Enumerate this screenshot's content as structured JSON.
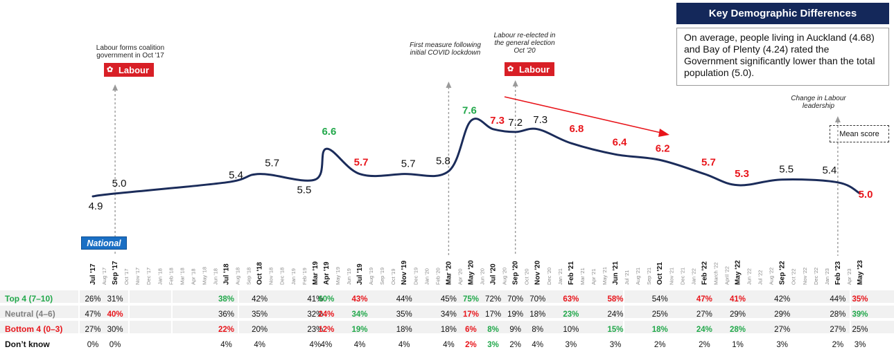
{
  "key_box": {
    "title": "Key Demographic Differences",
    "text": "On average, people living in Auckland (4.68) and Bay of Plenty (4.24) rated the Government significantly lower than the total population (5.0)."
  },
  "legend": {
    "label": "Mean score"
  },
  "annotations": {
    "coalition": "Labour forms coalition government in Oct '17",
    "covid": "First measure following initial COVID lockdown",
    "reelected": "Labour re-elected in the general election Oct '20",
    "leadership": "Change in Labour leadership"
  },
  "badges": {
    "labour1": "Labour",
    "labour2": "Labour",
    "national": "National"
  },
  "chart_data": {
    "type": "line",
    "title": "Mean score",
    "colors": {
      "line": "#1b2c5a",
      "red": "#e8151b",
      "green": "#22a84b",
      "gray": "#7f7f7f"
    },
    "months": [
      "Jul '17",
      "Aug '17",
      "Sep '17",
      "Oct '17",
      "Nov '17",
      "Dec '17",
      "Jan '18",
      "Feb '18",
      "Mar '18",
      "Apr '18",
      "May '18",
      "Jun '18",
      "Jul '18",
      "Aug '18",
      "Sep '18",
      "Oct '18",
      "Nov '18",
      "Dec '18",
      "Jan '19",
      "Feb '19",
      "Mar '19",
      "Apr '19",
      "May '19",
      "Jun '19",
      "Jul '19",
      "Aug '19",
      "Sep '19",
      "Oct '19",
      "Nov '19",
      "Dec '19",
      "Jan '20",
      "Feb '20",
      "Mar '20",
      "Apr '20",
      "May '20",
      "Jun '20",
      "Jul '20",
      "Aug '20",
      "Sep '20",
      "Oct '20",
      "Nov '20",
      "Dec '20",
      "Jan '21",
      "Feb '21",
      "Mar '21",
      "Apr '21",
      "May '21",
      "Jun '21",
      "Jul '21",
      "Aug '21",
      "Sep '21",
      "Oct '21",
      "Nov '21",
      "Dec '21",
      "Jan '22",
      "Feb '22",
      "March '22",
      "April '22",
      "May '22",
      "Jun '22",
      "Jul '22",
      "Aug '22",
      "Sep '22",
      "Oct '22",
      "Nov '22",
      "Dec '22",
      "Jan '23",
      "Feb '23",
      "Apr '23",
      "May '23"
    ],
    "bold_months": [
      "Jul '17",
      "Sep '17",
      "Jul '18",
      "Oct '18",
      "Mar '19",
      "Apr '19",
      "Jul '19",
      "Nov '19",
      "Mar '20",
      "May '20",
      "Jul '20",
      "Sep '20",
      "Nov '20",
      "Feb '21",
      "Jun '21",
      "Oct '21",
      "Feb '22",
      "May '22",
      "Sep '22",
      "Feb '23",
      "May '23"
    ],
    "points": [
      {
        "month": "Jul '17",
        "value": 4.9,
        "label": "4.9",
        "color": "black"
      },
      {
        "month": "Sep '17",
        "value": 5.0,
        "label": "5.0",
        "color": "black"
      },
      {
        "month": "Jul '18",
        "value": 5.4,
        "label": "5.4",
        "color": "black"
      },
      {
        "month": "Oct '18",
        "value": 5.7,
        "label": "5.7",
        "color": "black"
      },
      {
        "month": "Mar '19",
        "value": 5.5,
        "label": "5.5",
        "color": "black"
      },
      {
        "month": "Apr '19",
        "value": 6.6,
        "label": "6.6",
        "color": "green"
      },
      {
        "month": "Jul '19",
        "value": 5.7,
        "label": "5.7",
        "color": "red"
      },
      {
        "month": "Nov '19",
        "value": 5.7,
        "label": "5.7",
        "color": "black"
      },
      {
        "month": "Mar '20",
        "value": 5.8,
        "label": "5.8",
        "color": "black"
      },
      {
        "month": "May '20",
        "value": 7.6,
        "label": "7.6",
        "color": "green"
      },
      {
        "month": "Jul '20",
        "value": 7.3,
        "label": "7.3",
        "color": "red"
      },
      {
        "month": "Sep '20",
        "value": 7.2,
        "label": "7.2",
        "color": "black"
      },
      {
        "month": "Nov '20",
        "value": 7.3,
        "label": "7.3",
        "color": "black"
      },
      {
        "month": "Feb '21",
        "value": 6.8,
        "label": "6.8",
        "color": "red"
      },
      {
        "month": "Jun '21",
        "value": 6.4,
        "label": "6.4",
        "color": "red"
      },
      {
        "month": "Oct '21",
        "value": 6.2,
        "label": "6.2",
        "color": "red"
      },
      {
        "month": "Feb '22",
        "value": 5.7,
        "label": "5.7",
        "color": "red"
      },
      {
        "month": "May '22",
        "value": 5.3,
        "label": "5.3",
        "color": "red"
      },
      {
        "month": "Sep '22",
        "value": 5.5,
        "label": "5.5",
        "color": "black"
      },
      {
        "month": "Feb '23",
        "value": 5.4,
        "label": "5.4",
        "color": "black"
      },
      {
        "month": "May '23",
        "value": 5.0,
        "label": "5.0",
        "color": "red"
      }
    ],
    "events": [
      {
        "month": "Sep '17",
        "name": "coalition"
      },
      {
        "month": "Mar '20",
        "name": "covid"
      },
      {
        "month": "Sep '20",
        "name": "reelected"
      },
      {
        "month": "Feb '23",
        "name": "leadership"
      }
    ],
    "table": {
      "rows": [
        {
          "label": "Top 4 (7–10)",
          "color": "green",
          "cells": [
            "26%",
            "31%",
            "38%",
            "42%",
            "41%",
            "60%",
            "43%",
            "44%",
            "45%",
            "75%",
            "72%",
            "70%",
            "70%",
            "63%",
            "58%",
            "54%",
            "47%",
            "41%",
            "42%",
            "44%",
            "35%"
          ],
          "cell_colors": [
            "",
            "",
            "green",
            "",
            "",
            "green",
            "red",
            "",
            "",
            "green",
            "",
            "",
            "",
            "red",
            "red",
            "",
            "red",
            "red",
            "",
            "",
            "red"
          ]
        },
        {
          "label": "Neutral (4–6)",
          "color": "gray",
          "cells": [
            "47%",
            "40%",
            "36%",
            "35%",
            "32%",
            "24%",
            "34%",
            "35%",
            "34%",
            "17%",
            "17%",
            "19%",
            "18%",
            "23%",
            "24%",
            "25%",
            "27%",
            "29%",
            "29%",
            "28%",
            "39%"
          ],
          "cell_colors": [
            "",
            "red",
            "",
            "",
            "",
            "red",
            "green",
            "",
            "",
            "red",
            "",
            "",
            "",
            "green",
            "",
            "",
            "",
            "",
            "",
            "",
            "green"
          ]
        },
        {
          "label": "Bottom 4 (0–3)",
          "color": "red",
          "cells": [
            "27%",
            "30%",
            "22%",
            "20%",
            "23%",
            "12%",
            "19%",
            "18%",
            "18%",
            "6%",
            "8%",
            "9%",
            "8%",
            "10%",
            "15%",
            "18%",
            "24%",
            "28%",
            "27%",
            "27%",
            "25%"
          ],
          "cell_colors": [
            "",
            "",
            "red",
            "",
            "",
            "red",
            "green",
            "",
            "",
            "red",
            "green",
            "",
            "",
            "",
            "green",
            "green",
            "green",
            "green",
            "",
            "",
            ""
          ]
        },
        {
          "label": "Don’t know",
          "color": "black",
          "cells": [
            "0%",
            "0%",
            "4%",
            "4%",
            "4%",
            "4%",
            "4%",
            "4%",
            "4%",
            "2%",
            "3%",
            "2%",
            "4%",
            "3%",
            "3%",
            "2%",
            "2%",
            "1%",
            "3%",
            "2%",
            "3%"
          ],
          "cell_colors": [
            "",
            "",
            "",
            "",
            "",
            "",
            "",
            "",
            "",
            "red",
            "green",
            "",
            "",
            "",
            "",
            "",
            "",
            "",
            "",
            "",
            ""
          ]
        }
      ]
    }
  }
}
